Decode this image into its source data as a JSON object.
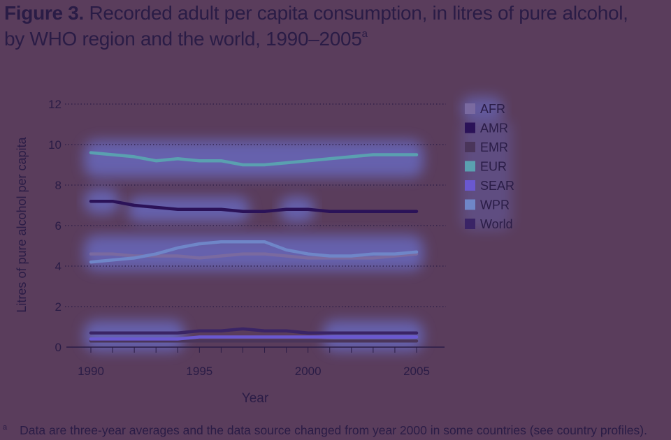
{
  "title": {
    "label": "Figure 3.",
    "line1": "Recorded adult per capita consumption, in litres of pure alcohol,",
    "line2": "by WHO region and the world, 1990–2005",
    "footnote_marker": "a"
  },
  "footnote": {
    "marker": "a",
    "text": "Data are three-year averages and the data source changed from year 2000 in some countries (see country profiles)."
  },
  "chart_data": {
    "type": "line",
    "title": "Figure 3. Recorded adult per capita consumption, in litres of pure alcohol, by WHO region and the world, 1990–2005",
    "xlabel": "Year",
    "ylabel": "Litres of pure alcohol per capita",
    "xlim": [
      1990,
      2005
    ],
    "ylim": [
      0,
      12
    ],
    "x_ticks": [
      "1990",
      "1995",
      "2000",
      "2005"
    ],
    "y_ticks": [
      "0",
      "2",
      "4",
      "6",
      "8",
      "10",
      "12"
    ],
    "grid": "horizontal dotted",
    "legend_position": "right",
    "x": [
      1990,
      1991,
      1992,
      1993,
      1994,
      1995,
      1996,
      1997,
      1998,
      1999,
      2000,
      2001,
      2002,
      2003,
      2004,
      2005
    ],
    "series": [
      {
        "name": "AFR",
        "color": "#7a6aa0",
        "values": [
          4.6,
          4.6,
          4.5,
          4.5,
          4.5,
          4.4,
          4.5,
          4.6,
          4.6,
          4.5,
          4.4,
          4.4,
          4.4,
          4.4,
          4.5,
          4.6
        ]
      },
      {
        "name": "AMR",
        "color": "#2b1258",
        "values": [
          7.2,
          7.2,
          7.0,
          6.9,
          6.8,
          6.8,
          6.8,
          6.7,
          6.7,
          6.8,
          6.8,
          6.7,
          6.7,
          6.7,
          6.7,
          6.7
        ]
      },
      {
        "name": "EMR",
        "color": "#4a355a",
        "values": [
          0.3,
          0.3,
          0.3,
          0.3,
          0.3,
          0.3,
          0.3,
          0.3,
          0.3,
          0.3,
          0.3,
          0.3,
          0.3,
          0.3,
          0.3,
          0.3
        ]
      },
      {
        "name": "EUR",
        "color": "#5aa0b0",
        "values": [
          9.6,
          9.5,
          9.4,
          9.2,
          9.3,
          9.2,
          9.2,
          9.0,
          9.0,
          9.1,
          9.2,
          9.3,
          9.4,
          9.5,
          9.5,
          9.5
        ]
      },
      {
        "name": "SEAR",
        "color": "#6a58d0",
        "values": [
          0.4,
          0.4,
          0.4,
          0.4,
          0.4,
          0.5,
          0.5,
          0.5,
          0.5,
          0.5,
          0.5,
          0.5,
          0.5,
          0.5,
          0.5,
          0.5
        ]
      },
      {
        "name": "WPR",
        "color": "#6f86c8",
        "values": [
          4.2,
          4.3,
          4.4,
          4.6,
          4.9,
          5.1,
          5.2,
          5.2,
          5.2,
          4.8,
          4.6,
          4.5,
          4.5,
          4.6,
          4.6,
          4.7
        ]
      },
      {
        "name": "World",
        "color": "#3a2466",
        "values": [
          0.7,
          0.7,
          0.7,
          0.7,
          0.7,
          0.8,
          0.8,
          0.9,
          0.8,
          0.8,
          0.7,
          0.7,
          0.7,
          0.7,
          0.7,
          0.7
        ]
      }
    ]
  }
}
